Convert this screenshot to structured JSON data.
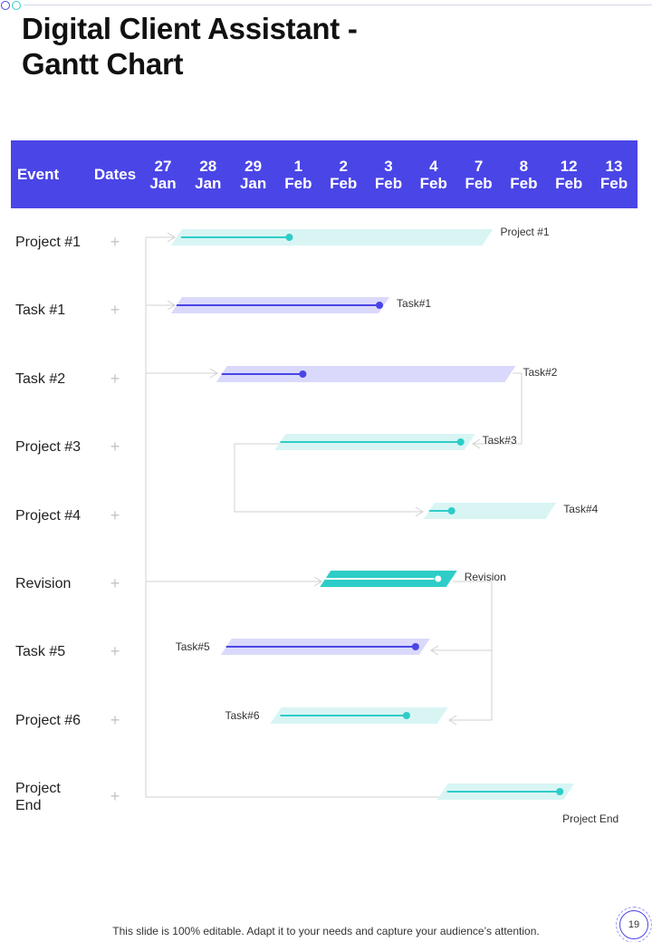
{
  "title": "Digital Client Assistant - Gantt Chart",
  "footer": {
    "note": "This slide is 100% editable. Adapt it to your needs and capture your audience’s attention.",
    "page_number": "19"
  },
  "icons": {
    "row_marker": "plus-icon",
    "deco": "circle-icon"
  },
  "colors": {
    "header": "#4a45e6",
    "teal": "#2ecdc7",
    "teal_light": "#d8f5f4",
    "indigo": "#4a45e6",
    "indigo_light": "#dad9fb",
    "connector": "#d0d0d0"
  },
  "header": {
    "event_label": "Event",
    "dates_label": "Dates",
    "dates": [
      {
        "day": "27",
        "month": "Jan"
      },
      {
        "day": "28",
        "month": "Jan"
      },
      {
        "day": "29",
        "month": "Jan"
      },
      {
        "day": "1",
        "month": "Feb"
      },
      {
        "day": "2",
        "month": "Feb"
      },
      {
        "day": "3",
        "month": "Feb"
      },
      {
        "day": "4",
        "month": "Feb"
      },
      {
        "day": "7",
        "month": "Feb"
      },
      {
        "day": "8",
        "month": "Feb"
      },
      {
        "day": "12",
        "month": "Feb"
      },
      {
        "day": "13",
        "month": "Feb"
      }
    ]
  },
  "chart_data": {
    "type": "gantt",
    "title": "Digital Client Assistant - Gantt Chart",
    "columns": [
      "27 Jan",
      "28 Jan",
      "29 Jan",
      "1 Feb",
      "2 Feb",
      "3 Feb",
      "4 Feb",
      "7 Feb",
      "8 Feb",
      "12 Feb",
      "13 Feb"
    ],
    "rows": [
      {
        "event": "Project #1",
        "label": "Project #1",
        "color": "teal",
        "solid": false,
        "start": 0.3,
        "end": 7.2,
        "progress_start": 0.4,
        "progress_end": 2.8,
        "label_side": "right"
      },
      {
        "event": "Task #1",
        "label": "Task#1",
        "color": "indigo",
        "solid": false,
        "start": 0.3,
        "end": 4.9,
        "progress_start": 0.3,
        "progress_end": 4.8,
        "label_side": "right"
      },
      {
        "event": "Task #2",
        "label": "Task#2",
        "color": "indigo",
        "solid": false,
        "start": 1.3,
        "end": 7.7,
        "progress_start": 1.3,
        "progress_end": 3.1,
        "label_side": "right"
      },
      {
        "event": "Project #3",
        "label": "Task#3",
        "color": "teal",
        "solid": false,
        "start": 2.6,
        "end": 6.8,
        "progress_start": 2.6,
        "progress_end": 6.6,
        "label_side": "right"
      },
      {
        "event": "Project #4",
        "label": "Task#4",
        "color": "teal",
        "solid": false,
        "start": 5.9,
        "end": 8.6,
        "progress_start": 5.9,
        "progress_end": 6.4,
        "label_side": "right"
      },
      {
        "event": "Revision",
        "label": "Revision",
        "color": "teal",
        "solid": true,
        "start": 3.6,
        "end": 6.4,
        "progress_start": 3.6,
        "progress_end": 6.1,
        "label_side": "right"
      },
      {
        "event": "Task #5",
        "label": "Task#5",
        "color": "indigo",
        "solid": false,
        "start": 1.4,
        "end": 5.8,
        "progress_start": 1.4,
        "progress_end": 5.6,
        "label_side": "left"
      },
      {
        "event": "Project #6",
        "label": "Task#6",
        "color": "teal",
        "solid": false,
        "start": 2.5,
        "end": 6.2,
        "progress_start": 2.6,
        "progress_end": 5.4,
        "label_side": "left"
      },
      {
        "event": "Project End",
        "label": "Project End",
        "color": "teal",
        "solid": false,
        "start": 6.2,
        "end": 9.0,
        "progress_start": 6.3,
        "progress_end": 8.8,
        "label_side": "below"
      }
    ]
  }
}
